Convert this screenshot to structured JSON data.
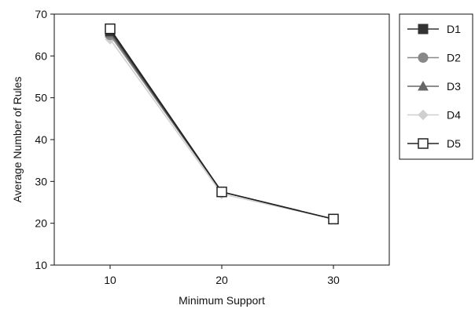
{
  "chart_data": {
    "type": "line",
    "x": [
      10,
      20,
      30
    ],
    "xlabel": "Minimum Support",
    "ylabel": "Average Number of Rules",
    "xticks": [
      "10",
      "20",
      "30"
    ],
    "yticks": [
      "10",
      "20",
      "30",
      "40",
      "50",
      "60",
      "70"
    ],
    "xlim": [
      5,
      35
    ],
    "ylim": [
      10,
      70
    ],
    "grid": false,
    "legend_position": "right",
    "series": [
      {
        "name": "D1",
        "values": [
          66,
          27.5,
          21
        ],
        "color": "#333333",
        "marker": "square-filled"
      },
      {
        "name": "D2",
        "values": [
          65,
          27.5,
          21
        ],
        "color": "#888888",
        "marker": "circle-filled"
      },
      {
        "name": "D3",
        "values": [
          65.5,
          27.5,
          21
        ],
        "color": "#666666",
        "marker": "triangle-filled"
      },
      {
        "name": "D4",
        "values": [
          64,
          27,
          21
        ],
        "color": "#cfcfcf",
        "marker": "diamond-filled"
      },
      {
        "name": "D5",
        "values": [
          66.5,
          27.5,
          21
        ],
        "color": "#222222",
        "marker": "square-open"
      }
    ]
  }
}
